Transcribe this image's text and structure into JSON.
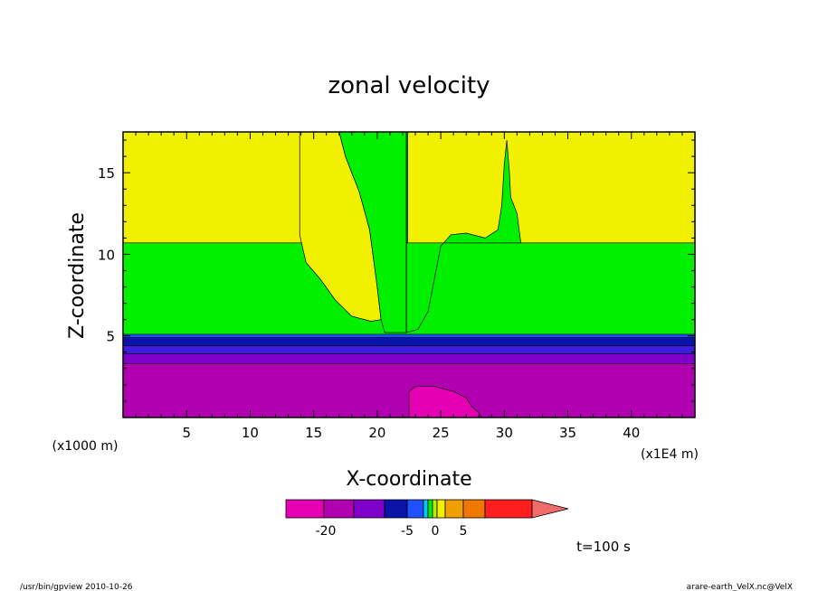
{
  "chart_data": {
    "type": "heatmap",
    "title": "zonal velocity",
    "xlabel": "X-coordinate",
    "ylabel": "Z-coordinate",
    "x_units_left": "(x1000 m)",
    "x_units_right": "(x1E4 m)",
    "xlim": [
      0,
      45
    ],
    "ylim": [
      0,
      17.5
    ],
    "x_ticks": [
      5,
      10,
      15,
      20,
      25,
      30,
      35,
      40
    ],
    "x_tick_labels": [
      "5",
      "10",
      "15",
      "20",
      "25",
      "30",
      "35",
      "40"
    ],
    "y_ticks": [
      5,
      10,
      15
    ],
    "y_tick_labels": [
      "5",
      "10",
      "15"
    ],
    "layers": [
      {
        "z": [
          0,
          3.3
        ],
        "color": "#b000b0"
      },
      {
        "z": [
          3.3,
          3.9
        ],
        "color": "#7f00c8"
      },
      {
        "z": [
          3.9,
          4.4
        ],
        "color": "#3c1edc"
      },
      {
        "z": [
          4.4,
          4.9
        ],
        "color": "#0a14a8"
      },
      {
        "z": [
          4.9,
          5.1
        ],
        "color": "#1e50ff"
      },
      {
        "z": [
          5.1,
          10.7
        ],
        "color": "#00f000"
      },
      {
        "z": [
          10.7,
          17.5
        ],
        "color": "#f0f000"
      }
    ],
    "regions": [
      {
        "name": "yellow-tongue-left",
        "color": "#f0f000",
        "points": [
          [
            13.9,
            11.2
          ],
          [
            14.4,
            9.5
          ],
          [
            15.5,
            8.5
          ],
          [
            16.7,
            7.2
          ],
          [
            18.0,
            6.2
          ],
          [
            19.5,
            5.9
          ],
          [
            20.3,
            6.0
          ],
          [
            20.0,
            8.0
          ],
          [
            19.4,
            11.5
          ],
          [
            18.6,
            13.8
          ],
          [
            17.5,
            16.0
          ],
          [
            17.0,
            17.5
          ],
          [
            13.9,
            17.5
          ]
        ]
      },
      {
        "name": "green-plume-center",
        "color": "#00f000",
        "points": [
          [
            17.0,
            17.5
          ],
          [
            17.5,
            16.0
          ],
          [
            18.6,
            13.8
          ],
          [
            19.4,
            11.5
          ],
          [
            20.0,
            8.0
          ],
          [
            20.3,
            6.0
          ],
          [
            20.6,
            5.2
          ],
          [
            22.3,
            5.2
          ],
          [
            22.3,
            17.5
          ]
        ]
      },
      {
        "name": "green-wedge-right",
        "color": "#00f000",
        "points": [
          [
            22.3,
            5.2
          ],
          [
            23.2,
            5.4
          ],
          [
            24.0,
            6.5
          ],
          [
            24.5,
            8.5
          ],
          [
            25.0,
            10.5
          ],
          [
            25.8,
            11.2
          ],
          [
            27.0,
            11.3
          ],
          [
            28.5,
            11.0
          ],
          [
            29.5,
            11.5
          ],
          [
            29.8,
            13.0
          ],
          [
            30.0,
            15.5
          ],
          [
            30.2,
            17.0
          ],
          [
            30.4,
            15.0
          ],
          [
            30.5,
            13.5
          ],
          [
            31.0,
            12.5
          ],
          [
            31.3,
            10.7
          ],
          [
            22.3,
            10.7
          ]
        ]
      },
      {
        "name": "green-strip-right-cap",
        "color": "#00f000",
        "points": [
          [
            22.3,
            10.7
          ],
          [
            22.3,
            17.5
          ],
          [
            22.4,
            17.5
          ],
          [
            22.4,
            10.7
          ]
        ]
      },
      {
        "name": "magenta-surface-lobe",
        "color": "#e600b4",
        "points": [
          [
            22.5,
            0
          ],
          [
            22.5,
            1.6
          ],
          [
            23.0,
            1.9
          ],
          [
            24.5,
            1.9
          ],
          [
            26.0,
            1.6
          ],
          [
            27.0,
            1.2
          ],
          [
            27.4,
            0.7
          ],
          [
            28.0,
            0.3
          ],
          [
            28.2,
            0
          ]
        ]
      }
    ],
    "colorbar": {
      "tick_labels": [
        "-20",
        "-5",
        "0",
        "5"
      ],
      "colors": [
        "#e600b4",
        "#b000b0",
        "#7f00c8",
        "#0a14a8",
        "#1e50ff",
        "#00c8ff",
        "#00f000",
        "#b4f000",
        "#f0f000",
        "#f0a000",
        "#f07800",
        "#ff1e1e",
        "#f06c6c"
      ]
    },
    "annotation_time": "t=100 s",
    "footer_left": "/usr/bin/gpview   2010-10-26",
    "footer_right": "arare-earth_VelX.nc@VelX"
  }
}
